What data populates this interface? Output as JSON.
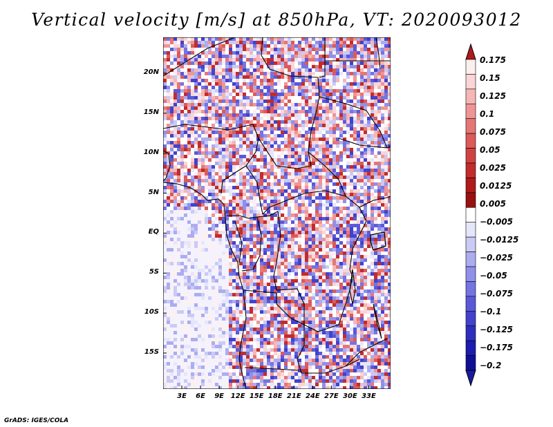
{
  "title": "Vertical velocity [m/s] at 850hPa, VT: 2020093012",
  "credit": "GrADS: IGES/COLA",
  "map": {
    "region": "Central Africa",
    "variable": "Vertical velocity",
    "units": "m/s",
    "level": "850hPa",
    "valid_time": "2020093012",
    "lat_range": [
      -19.5,
      24.5
    ],
    "lon_range": [
      0,
      36.5
    ],
    "lat_ticks": [
      {
        "value": 20,
        "label": "20N"
      },
      {
        "value": 15,
        "label": "15N"
      },
      {
        "value": 10,
        "label": "10N"
      },
      {
        "value": 5,
        "label": "5N"
      },
      {
        "value": 0,
        "label": "EQ"
      },
      {
        "value": -5,
        "label": "5S"
      },
      {
        "value": -10,
        "label": "10S"
      },
      {
        "value": -15,
        "label": "15S"
      }
    ],
    "lon_ticks": [
      {
        "value": 3,
        "label": "3E"
      },
      {
        "value": 6,
        "label": "6E"
      },
      {
        "value": 9,
        "label": "9E"
      },
      {
        "value": 12,
        "label": "12E"
      },
      {
        "value": 15,
        "label": "15E"
      },
      {
        "value": 18,
        "label": "18E"
      },
      {
        "value": 21,
        "label": "21E"
      },
      {
        "value": 24,
        "label": "24E"
      },
      {
        "value": 27,
        "label": "27E"
      },
      {
        "value": 30,
        "label": "30E"
      },
      {
        "value": 33,
        "label": "33E"
      }
    ]
  },
  "colorbar": {
    "colors": [
      "#fdeeee",
      "#fbd5d5",
      "#f6b6b6",
      "#ef9595",
      "#e67676",
      "#dc5a5a",
      "#d04242",
      "#c22c2c",
      "#b01a1a",
      "#991010",
      "#ffffff",
      "#e6e6fb",
      "#cacaf6",
      "#acacf0",
      "#9090ea",
      "#7474e2",
      "#5a5ad8",
      "#4242cc",
      "#2e2ebe",
      "#1c1cae",
      "#0f0f96"
    ],
    "top_color": "#b01a1a",
    "bottom_color": "#1a1aa0",
    "label_values": [
      "0.175",
      "0.15",
      "0.125",
      "0.1",
      "0.075",
      "0.05",
      "0.025",
      "0.0125",
      "0.005",
      "−0.005",
      "−0.0125",
      "−0.025",
      "−0.05",
      "−0.075",
      "−0.1",
      "−0.125",
      "−0.175",
      "−0.2"
    ]
  }
}
